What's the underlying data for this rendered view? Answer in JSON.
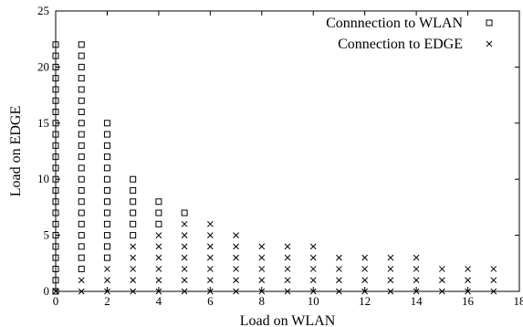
{
  "chart_data": {
    "type": "scatter",
    "xlabel": "Load on WLAN",
    "ylabel": "Load on EDGE",
    "xlim": [
      0,
      18
    ],
    "ylim": [
      0,
      25
    ],
    "x_ticks": [
      0,
      2,
      4,
      6,
      8,
      10,
      12,
      14,
      16,
      18
    ],
    "y_ticks": [
      0,
      5,
      10,
      15,
      20,
      25
    ],
    "grid": false,
    "legend_position": "top-right",
    "series": [
      {
        "name": "Connnection to WLAN",
        "marker": "square",
        "points": [
          [
            0,
            0
          ],
          [
            0,
            1
          ],
          [
            0,
            2
          ],
          [
            0,
            3
          ],
          [
            0,
            4
          ],
          [
            0,
            5
          ],
          [
            0,
            6
          ],
          [
            0,
            7
          ],
          [
            0,
            8
          ],
          [
            0,
            9
          ],
          [
            0,
            10
          ],
          [
            0,
            11
          ],
          [
            0,
            12
          ],
          [
            0,
            13
          ],
          [
            0,
            14
          ],
          [
            0,
            15
          ],
          [
            0,
            16
          ],
          [
            0,
            17
          ],
          [
            0,
            18
          ],
          [
            0,
            19
          ],
          [
            0,
            20
          ],
          [
            0,
            21
          ],
          [
            0,
            22
          ],
          [
            1,
            2
          ],
          [
            1,
            3
          ],
          [
            1,
            4
          ],
          [
            1,
            5
          ],
          [
            1,
            6
          ],
          [
            1,
            7
          ],
          [
            1,
            8
          ],
          [
            1,
            9
          ],
          [
            1,
            10
          ],
          [
            1,
            11
          ],
          [
            1,
            12
          ],
          [
            1,
            13
          ],
          [
            1,
            14
          ],
          [
            1,
            15
          ],
          [
            1,
            16
          ],
          [
            1,
            17
          ],
          [
            1,
            18
          ],
          [
            1,
            19
          ],
          [
            1,
            20
          ],
          [
            1,
            21
          ],
          [
            1,
            22
          ],
          [
            2,
            3
          ],
          [
            2,
            4
          ],
          [
            2,
            5
          ],
          [
            2,
            6
          ],
          [
            2,
            7
          ],
          [
            2,
            8
          ],
          [
            2,
            9
          ],
          [
            2,
            10
          ],
          [
            2,
            11
          ],
          [
            2,
            12
          ],
          [
            2,
            13
          ],
          [
            2,
            14
          ],
          [
            2,
            15
          ],
          [
            3,
            5
          ],
          [
            3,
            6
          ],
          [
            3,
            7
          ],
          [
            3,
            8
          ],
          [
            3,
            9
          ],
          [
            3,
            10
          ],
          [
            4,
            6
          ],
          [
            4,
            7
          ],
          [
            4,
            8
          ],
          [
            5,
            7
          ]
        ]
      },
      {
        "name": "Connection to EDGE",
        "marker": "x",
        "points": [
          [
            0,
            0
          ],
          [
            1,
            0
          ],
          [
            1,
            1
          ],
          [
            2,
            0
          ],
          [
            2,
            1
          ],
          [
            2,
            2
          ],
          [
            3,
            0
          ],
          [
            3,
            1
          ],
          [
            3,
            2
          ],
          [
            3,
            3
          ],
          [
            3,
            4
          ],
          [
            4,
            0
          ],
          [
            4,
            1
          ],
          [
            4,
            2
          ],
          [
            4,
            3
          ],
          [
            4,
            4
          ],
          [
            4,
            5
          ],
          [
            5,
            0
          ],
          [
            5,
            1
          ],
          [
            5,
            2
          ],
          [
            5,
            3
          ],
          [
            5,
            4
          ],
          [
            5,
            5
          ],
          [
            5,
            6
          ],
          [
            6,
            0
          ],
          [
            6,
            1
          ],
          [
            6,
            2
          ],
          [
            6,
            3
          ],
          [
            6,
            4
          ],
          [
            6,
            5
          ],
          [
            6,
            6
          ],
          [
            7,
            0
          ],
          [
            7,
            1
          ],
          [
            7,
            2
          ],
          [
            7,
            3
          ],
          [
            7,
            4
          ],
          [
            7,
            5
          ],
          [
            8,
            0
          ],
          [
            8,
            1
          ],
          [
            8,
            2
          ],
          [
            8,
            3
          ],
          [
            8,
            4
          ],
          [
            9,
            0
          ],
          [
            9,
            1
          ],
          [
            9,
            2
          ],
          [
            9,
            3
          ],
          [
            9,
            4
          ],
          [
            10,
            0
          ],
          [
            10,
            1
          ],
          [
            10,
            2
          ],
          [
            10,
            3
          ],
          [
            10,
            4
          ],
          [
            11,
            0
          ],
          [
            11,
            1
          ],
          [
            11,
            2
          ],
          [
            11,
            3
          ],
          [
            12,
            0
          ],
          [
            12,
            1
          ],
          [
            12,
            2
          ],
          [
            12,
            3
          ],
          [
            13,
            0
          ],
          [
            13,
            1
          ],
          [
            13,
            2
          ],
          [
            13,
            3
          ],
          [
            14,
            0
          ],
          [
            14,
            1
          ],
          [
            14,
            2
          ],
          [
            14,
            3
          ],
          [
            15,
            0
          ],
          [
            15,
            1
          ],
          [
            15,
            2
          ],
          [
            16,
            0
          ],
          [
            16,
            1
          ],
          [
            16,
            2
          ],
          [
            17,
            0
          ],
          [
            17,
            1
          ],
          [
            17,
            2
          ]
        ]
      }
    ]
  }
}
